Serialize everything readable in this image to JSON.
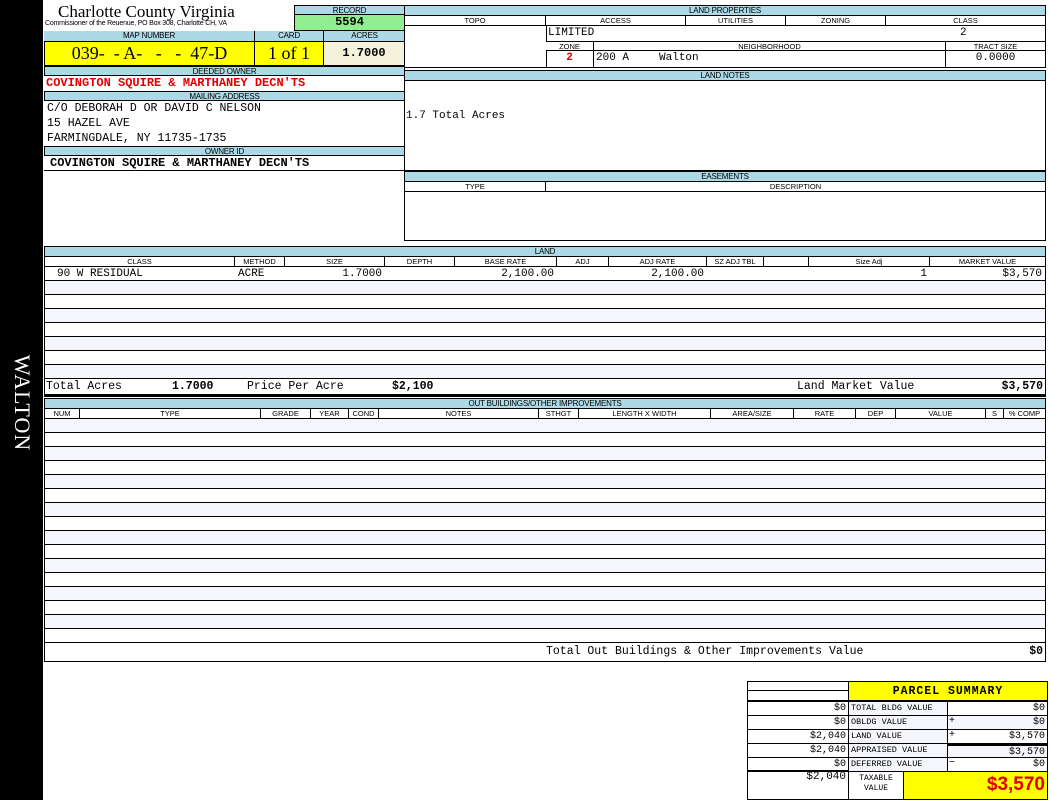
{
  "sidebar": {
    "district": "WALTON"
  },
  "header": {
    "title": "Charlotte County Virginia",
    "subtitle": "Commissioner of the Reuenue, PO Box 308, Charlotte CH, VA",
    "record_label": "RECORD",
    "record": "5594"
  },
  "parcel": {
    "map_number_label": "MAP NUMBER",
    "map_number": "039-  - A-   -   -  47-D",
    "card_label": "CARD",
    "card": "1 of 1",
    "acres_label": "ACRES",
    "acres": "1.7000"
  },
  "owner": {
    "deeded_label": "DEEDED OWNER",
    "deeded": "COVINGTON SQUIRE & MARTHANEY DECN'TS",
    "mailing_label": "MAILING ADDRESS",
    "mailing": [
      "C/O DEBORAH D OR DAVID C NELSON",
      "15 HAZEL AVE",
      "FARMINGDALE, NY 11735-1735"
    ],
    "owner_id_label": "OWNER ID",
    "owner_id": "COVINGTON SQUIRE & MARTHANEY DECN'TS"
  },
  "land_properties": {
    "title": "LAND PROPERTIES",
    "columns": [
      "TOPO",
      "ACCESS",
      "UTILITIES",
      "ZONING",
      "CLASS"
    ],
    "topo": "",
    "access": "LIMITED",
    "utilities": "",
    "zoning": "",
    "class": "2",
    "zone_label": "ZONE",
    "neighborhood_label": "NEIGHBORHOOD",
    "tract_label": "TRACT SIZE",
    "zone": "2",
    "neighborhood_code": "200 A",
    "neighborhood": "Walton",
    "tract_size": "0.0000"
  },
  "land_notes": {
    "title": "LAND NOTES",
    "text": "1.7 Total Acres"
  },
  "easements": {
    "title": "EASEMENTS",
    "columns": [
      "TYPE",
      "DESCRIPTION"
    ]
  },
  "land": {
    "title": "LAND",
    "columns": [
      "CLASS",
      "METHOD",
      "SIZE",
      "DEPTH",
      "BASE RATE",
      "ADJ",
      "ADJ RATE",
      "SZ ADJ TBL",
      "",
      "Size Adj",
      "MARKET VALUE"
    ],
    "rows": [
      [
        "90 W RESIDUAL",
        "ACRE",
        "1.7000",
        "",
        "2,100.00",
        "",
        "2,100.00",
        "",
        "",
        "1",
        "$3,570"
      ]
    ],
    "total_acres_label": "Total Acres",
    "total_acres": "1.7000",
    "ppa_label": "Price Per Acre",
    "ppa": "$2,100",
    "market_label": "Land Market Value",
    "market": "$3,570"
  },
  "outbuildings": {
    "title": "OUT BUILDINGS/OTHER IMPROVEMENTS",
    "columns": [
      "NUM",
      "TYPE",
      "GRADE",
      "YEAR",
      "COND",
      "NOTES",
      "STHGT",
      "LENGTH X WIDTH",
      "AREA/SIZE",
      "RATE",
      "DEP",
      "VALUE",
      "S",
      "% COMP"
    ],
    "total_label": "Total Out Buildings & Other Improvements Value",
    "total": "$0"
  },
  "summary": {
    "title": "PARCEL SUMMARY",
    "rows": [
      {
        "left": "$0",
        "label": "TOTAL BLDG VALUE",
        "op": "",
        "value": "$0"
      },
      {
        "left": "$0",
        "label": "OBLDG VALUE",
        "op": "+",
        "value": "$0"
      },
      {
        "left": "$2,040",
        "label": "LAND VALUE",
        "op": "+",
        "value": "$3,570"
      },
      {
        "left": "$2,040",
        "label": "APPRAISED VALUE",
        "op": "",
        "value": "$3,570"
      },
      {
        "left": "$0",
        "label": "DEFERRED VALUE",
        "op": "−",
        "value": "$0"
      }
    ],
    "taxable_left": "$2,040",
    "taxable_label": "TAXABLE VALUE",
    "taxable": "$3,570"
  },
  "colors": {
    "header_blue": "#add8e6",
    "record_green": "#90ee90",
    "yellow": "#ffff00",
    "red": "#e00000"
  }
}
